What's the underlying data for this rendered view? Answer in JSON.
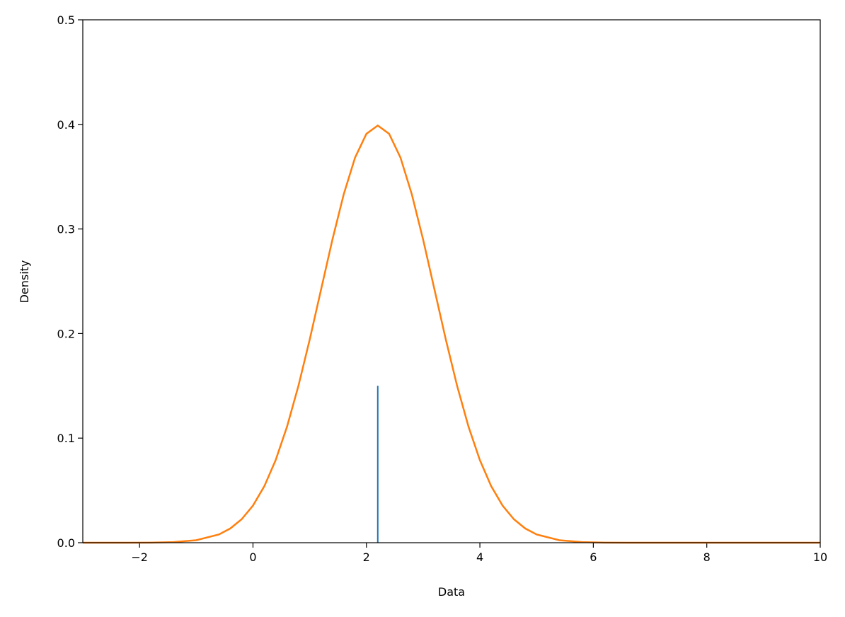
{
  "chart_data": {
    "type": "line",
    "xlabel": "Data",
    "ylabel": "Density",
    "x": [
      -3,
      -2.6,
      -2.2,
      -1.8,
      -1.4,
      -1.0,
      -0.6,
      -0.4,
      -0.2,
      0,
      0.2,
      0.4,
      0.6,
      0.8,
      1.0,
      1.2,
      1.4,
      1.6,
      1.8,
      2.0,
      2.2,
      2.4,
      2.6,
      2.8,
      3.0,
      3.2,
      3.4,
      3.6,
      3.8,
      4.0,
      4.2,
      4.4,
      4.6,
      4.8,
      5.0,
      5.4,
      5.8,
      6.2,
      6.6,
      7.4,
      8.2,
      9.0,
      10
    ],
    "series": [
      {
        "color": "#ff7f0e",
        "values": [
          0,
          0,
          0,
          0.0001,
          0.0006,
          0.0024,
          0.0079,
          0.0136,
          0.0224,
          0.0355,
          0.054,
          0.079,
          0.1109,
          0.1497,
          0.1942,
          0.242,
          0.2897,
          0.3332,
          0.3683,
          0.391,
          0.3989,
          0.391,
          0.3683,
          0.3332,
          0.2897,
          0.242,
          0.1942,
          0.1497,
          0.1109,
          0.079,
          0.054,
          0.0355,
          0.0224,
          0.0136,
          0.0079,
          0.0024,
          0.0006,
          0.0001,
          0,
          0,
          0,
          0,
          0
        ]
      }
    ],
    "vline": {
      "x": 2.2,
      "ymin": 0,
      "ymax": 0.15,
      "color": "#1f77b4"
    },
    "xlim": [
      -3,
      10
    ],
    "xticks": [
      {
        "value": -2,
        "label": "−2"
      },
      0,
      2,
      4,
      6,
      8,
      10
    ],
    "ylim": [
      0,
      0.5
    ],
    "yticks": [
      {
        "value": 0,
        "label": "0.0"
      },
      0.1,
      0.2,
      0.3,
      0.4,
      0.5
    ],
    "grid": false
  }
}
